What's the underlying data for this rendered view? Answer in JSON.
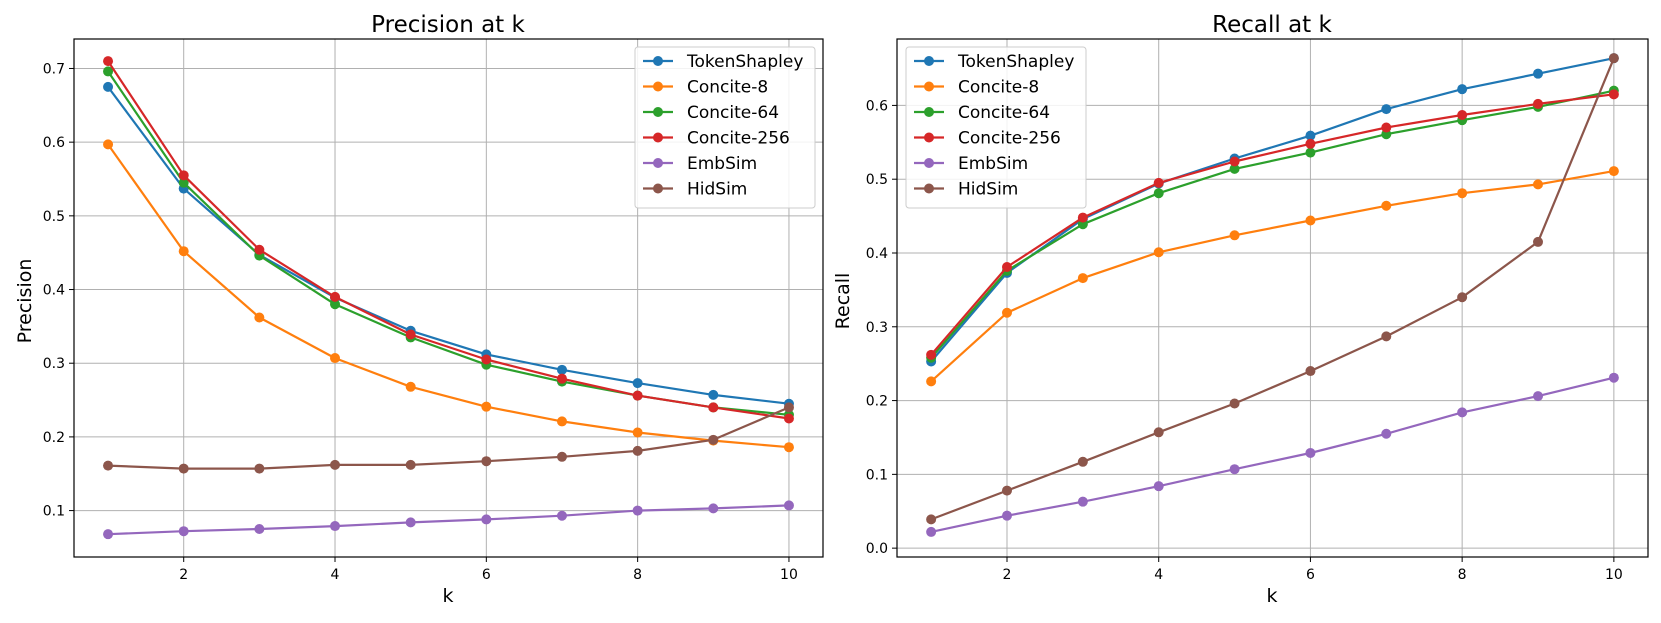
{
  "chart_data": [
    {
      "type": "line",
      "title": "Precision at k",
      "xlabel": "k",
      "ylabel": "Precision",
      "xlim": [
        0.55,
        10.45
      ],
      "ylim": [
        0.037,
        0.74
      ],
      "xticks": [
        2,
        4,
        6,
        8,
        10
      ],
      "yticks": [
        0.1,
        0.2,
        0.3,
        0.4,
        0.5,
        0.6,
        0.7
      ],
      "ytick_labels": [
        "0.1",
        "0.2",
        "0.3",
        "0.4",
        "0.5",
        "0.6",
        "0.7"
      ],
      "grid": true,
      "legend_position": "upper right",
      "x": [
        1,
        2,
        3,
        4,
        5,
        6,
        7,
        8,
        9,
        10
      ],
      "series": [
        {
          "name": "TokenShapley",
          "color": "#1f77b4",
          "values": [
            0.675,
            0.537,
            0.447,
            0.389,
            0.344,
            0.312,
            0.291,
            0.273,
            0.257,
            0.245
          ]
        },
        {
          "name": "Concite-8",
          "color": "#ff7f0e",
          "values": [
            0.597,
            0.452,
            0.362,
            0.307,
            0.268,
            0.241,
            0.221,
            0.206,
            0.195,
            0.186
          ]
        },
        {
          "name": "Concite-64",
          "color": "#2ca02c",
          "values": [
            0.696,
            0.545,
            0.446,
            0.38,
            0.335,
            0.298,
            0.275,
            0.256,
            0.24,
            0.23
          ]
        },
        {
          "name": "Concite-256",
          "color": "#d62728",
          "values": [
            0.71,
            0.555,
            0.454,
            0.39,
            0.339,
            0.305,
            0.279,
            0.256,
            0.24,
            0.225
          ]
        },
        {
          "name": "EmbSim",
          "color": "#9467bd",
          "values": [
            0.068,
            0.072,
            0.075,
            0.079,
            0.084,
            0.088,
            0.093,
            0.1,
            0.103,
            0.107
          ]
        },
        {
          "name": "HidSim",
          "color": "#8c564b",
          "values": [
            0.161,
            0.157,
            0.157,
            0.162,
            0.162,
            0.167,
            0.173,
            0.181,
            0.196,
            0.24
          ]
        }
      ]
    },
    {
      "type": "line",
      "title": "Recall at k",
      "xlabel": "k",
      "ylabel": "Recall",
      "xlim": [
        0.55,
        10.45
      ],
      "ylim": [
        -0.012,
        0.69
      ],
      "xticks": [
        2,
        4,
        6,
        8,
        10
      ],
      "yticks": [
        0.0,
        0.1,
        0.2,
        0.3,
        0.4,
        0.5,
        0.6
      ],
      "ytick_labels": [
        "0.0",
        "0.1",
        "0.2",
        "0.3",
        "0.4",
        "0.5",
        "0.6"
      ],
      "grid": true,
      "legend_position": "upper left",
      "x": [
        1,
        2,
        3,
        4,
        5,
        6,
        7,
        8,
        9,
        10
      ],
      "series": [
        {
          "name": "TokenShapley",
          "color": "#1f77b4",
          "values": [
            0.253,
            0.373,
            0.446,
            0.494,
            0.528,
            0.559,
            0.595,
            0.622,
            0.643,
            0.664
          ]
        },
        {
          "name": "Concite-8",
          "color": "#ff7f0e",
          "values": [
            0.226,
            0.319,
            0.366,
            0.401,
            0.424,
            0.444,
            0.464,
            0.481,
            0.493,
            0.511
          ]
        },
        {
          "name": "Concite-64",
          "color": "#2ca02c",
          "values": [
            0.258,
            0.376,
            0.439,
            0.481,
            0.514,
            0.536,
            0.561,
            0.58,
            0.598,
            0.62
          ]
        },
        {
          "name": "Concite-256",
          "color": "#d62728",
          "values": [
            0.262,
            0.381,
            0.448,
            0.495,
            0.524,
            0.548,
            0.57,
            0.587,
            0.602,
            0.615
          ]
        },
        {
          "name": "EmbSim",
          "color": "#9467bd",
          "values": [
            0.022,
            0.044,
            0.063,
            0.084,
            0.107,
            0.129,
            0.155,
            0.184,
            0.206,
            0.231
          ]
        },
        {
          "name": "HidSim",
          "color": "#8c564b",
          "values": [
            0.039,
            0.078,
            0.117,
            0.157,
            0.196,
            0.24,
            0.287,
            0.34,
            0.415,
            0.664
          ]
        }
      ]
    }
  ]
}
